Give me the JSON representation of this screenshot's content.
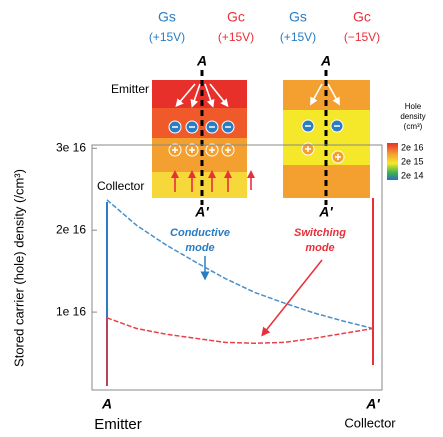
{
  "chart_data": {
    "type": "line",
    "y_label": "Stored carrier (hole) density (/cm³)",
    "categories": [
      "A",
      null,
      null,
      null,
      null,
      null,
      null,
      null,
      null,
      "A'"
    ],
    "x_end_labels": [
      "Emitter",
      "Collector"
    ],
    "series": [
      {
        "color": "#4a8fc9",
        "values": [
          2.37e+16,
          2.06e+16,
          1.82e+16,
          1.61e+16,
          1.41e+16,
          1.24e+16,
          1.11e+16,
          9900000000000000.0,
          8900000000000000.0,
          8000000000000000.0
        ]
      },
      {
        "color": "#e8404a",
        "values": [
          9300000000000000.0,
          8000000000000000.0,
          7300000000000000.0,
          6800000000000000.0,
          6300000000000000.0,
          6200000000000000.0,
          6300000000000000.0,
          6800000000000000.0,
          7400000000000000.0,
          8000000000000000.0
        ]
      }
    ],
    "ylim": [
      490000000000000.0,
      3.04e+16
    ],
    "yticks": [
      {
        "value": 1e+16,
        "label": "1e 16"
      },
      {
        "value": 2e+16,
        "label": "2e 16"
      },
      {
        "value": 3e+16,
        "label": "3e 16"
      }
    ],
    "annotations": [
      {
        "lines": [
          "Conductive",
          "mode"
        ],
        "color": "#2a7cc4"
      },
      {
        "lines": [
          "Switching",
          "mode"
        ],
        "color": "#e8303a"
      }
    ]
  },
  "diagram": {
    "gates": [
      {
        "name": "Gs",
        "voltage": "(+15V)",
        "color": "#2a7cc4"
      },
      {
        "name": "Gc",
        "voltage": "(+15V)",
        "color": "#e8303a"
      },
      {
        "name": "Gs",
        "voltage": "(+15V)",
        "color": "#2a7cc4"
      },
      {
        "name": "Gc",
        "voltage": "(−15V)",
        "color": "#e8303a"
      }
    ],
    "cut_top": [
      "A",
      "A"
    ],
    "cut_bottom": [
      "A'",
      "A'"
    ],
    "emitter": "Emitter",
    "collector": "Collector",
    "colorbar_title": [
      "Hole",
      "density",
      "(cm³)"
    ],
    "colorbar_labels": [
      "2e 16",
      "2e 15",
      "2e 14"
    ]
  }
}
